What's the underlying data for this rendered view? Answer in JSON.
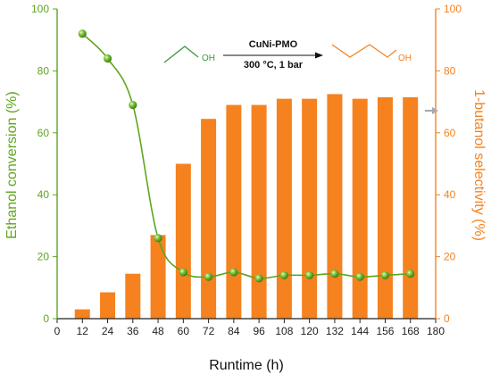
{
  "chart_data": {
    "type": "bar+line",
    "x": [
      12,
      24,
      36,
      48,
      60,
      72,
      84,
      96,
      108,
      120,
      132,
      144,
      156,
      168
    ],
    "x_ticks": [
      0,
      12,
      24,
      36,
      48,
      60,
      72,
      84,
      96,
      108,
      120,
      132,
      144,
      156,
      168,
      180
    ],
    "xlim": [
      0,
      180
    ],
    "xlabel": "Runtime (h)",
    "left_axis": {
      "ylabel": "Ethanol conversion (%)",
      "ylim": [
        0,
        100
      ],
      "ticks": [
        0,
        20,
        40,
        60,
        80,
        100
      ],
      "color": "#5fa51f"
    },
    "right_axis": {
      "ylabel": "1-butanol selectivity (%)",
      "ylim": [
        0,
        100
      ],
      "ticks": [
        0,
        20,
        40,
        60,
        80,
        100
      ],
      "color": "#f5821f"
    },
    "series": [
      {
        "type": "bar",
        "axis": "right",
        "color": "#f5821f",
        "values": [
          3,
          8.5,
          14.5,
          27,
          50,
          64.5,
          69,
          69,
          71,
          71,
          72.5,
          71,
          71.5,
          71.5
        ]
      },
      {
        "type": "line",
        "axis": "left",
        "color": "#5fa51f",
        "values": [
          92,
          84,
          69,
          26,
          15,
          13.5,
          15,
          13,
          14,
          14,
          14.5,
          13.5,
          14,
          14.5
        ]
      }
    ],
    "scheme": {
      "catalyst": "CuNi-PMO",
      "conditions": "300 °C, 1 bar",
      "reactant_oh": "OH",
      "product_oh": "OH"
    },
    "grid": false
  }
}
